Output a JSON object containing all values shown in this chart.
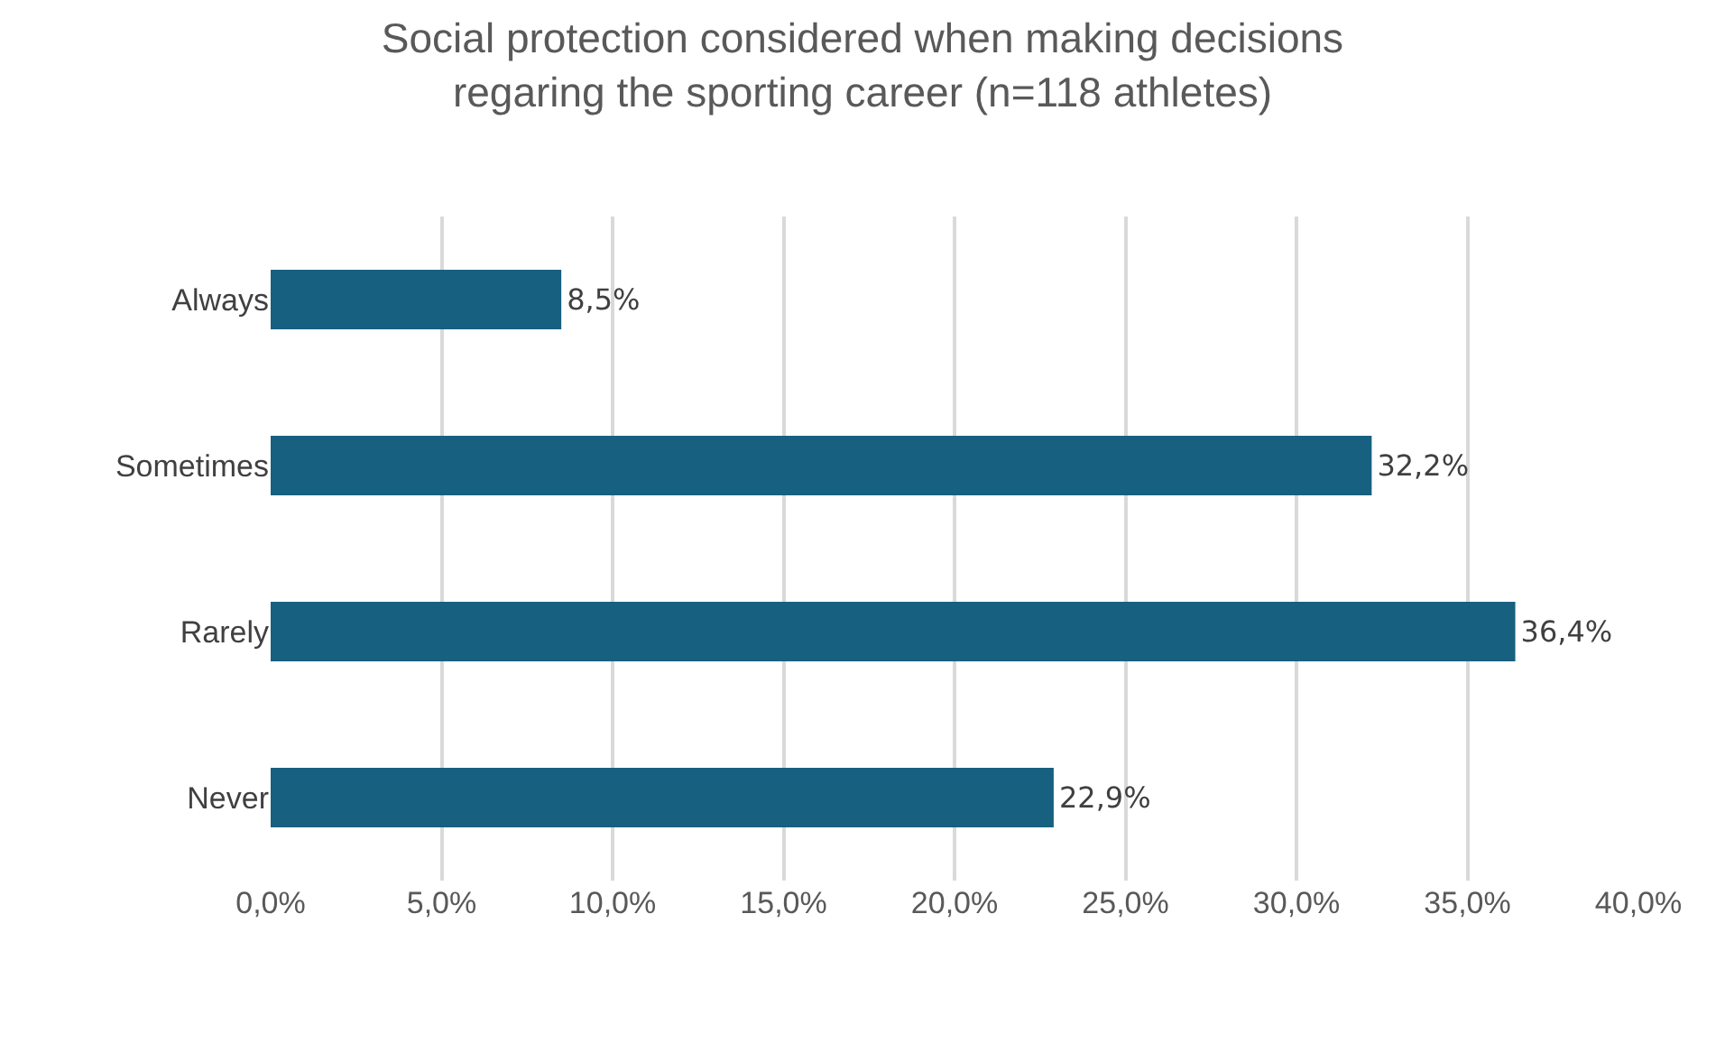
{
  "chart_data": {
    "type": "bar",
    "orientation": "horizontal",
    "title": "Social protection considered when making decisions\nregaring the sporting career (n=118 athletes)",
    "categories": [
      "Always",
      "Sometimes",
      "Rarely",
      "Never"
    ],
    "values": [
      8.5,
      32.2,
      36.4,
      22.9
    ],
    "value_labels": [
      "8,5%",
      "32,2%",
      "36,4%",
      "22,9%"
    ],
    "color": "#17607f",
    "xlim": [
      0,
      40
    ],
    "xticks": [
      {
        "value": 0,
        "label": "0,0%"
      },
      {
        "value": 5,
        "label": "5,0%"
      },
      {
        "value": 10,
        "label": "10,0%"
      },
      {
        "value": 15,
        "label": "15,0%"
      },
      {
        "value": 20,
        "label": "20,0%"
      },
      {
        "value": 25,
        "label": "25,0%"
      },
      {
        "value": 30,
        "label": "30,0%"
      },
      {
        "value": 35,
        "label": "35,0%"
      },
      {
        "value": 40,
        "label": "40,0%"
      }
    ],
    "grid": "x",
    "legend": false
  }
}
